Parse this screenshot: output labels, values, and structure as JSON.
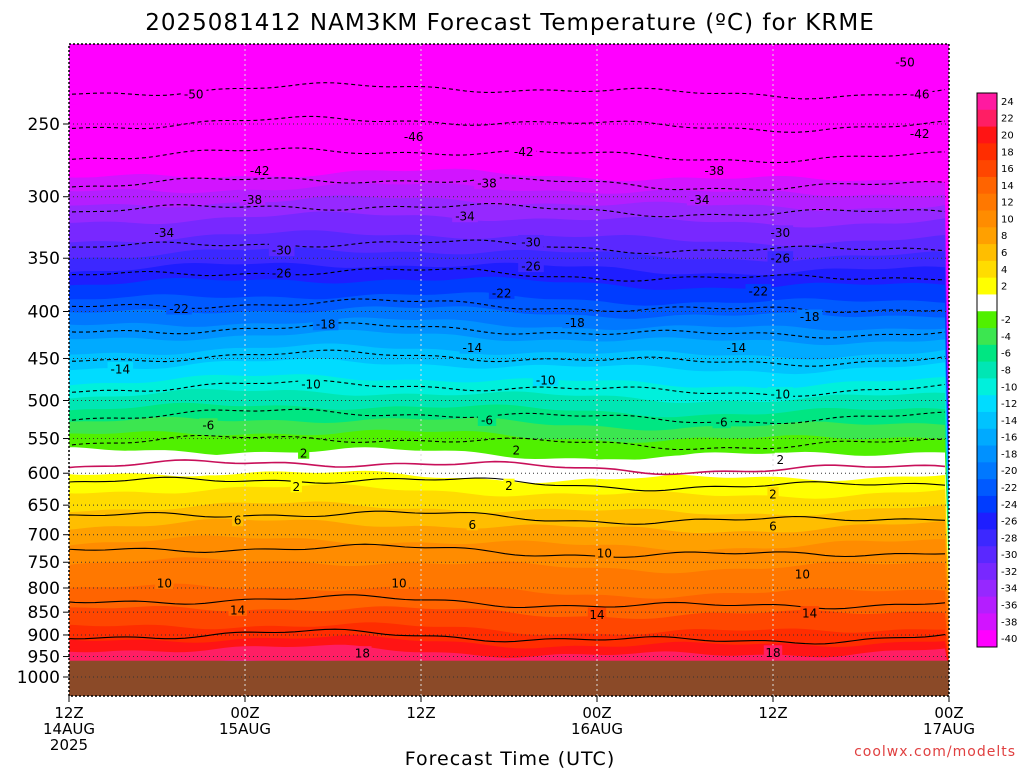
{
  "chart_data": {
    "type": "heatmap",
    "title": "2025081412 NAM3KM Forecast Temperature (ºC) for KRME",
    "xlabel": "Forecast Time (UTC)",
    "credit": "coolwx.com/modelts",
    "y_ticks": [
      "250",
      "300",
      "350",
      "400",
      "450",
      "500",
      "550",
      "600",
      "650",
      "700",
      "750",
      "800",
      "850",
      "900",
      "950",
      "1000"
    ],
    "x_ticks": [
      {
        "time": "12Z",
        "date": "14AUG",
        "year": "2025"
      },
      {
        "time": "00Z",
        "date": "15AUG",
        "year": ""
      },
      {
        "time": "12Z",
        "date": "",
        "year": ""
      },
      {
        "time": "00Z",
        "date": "16AUG",
        "year": ""
      },
      {
        "time": "12Z",
        "date": "",
        "year": ""
      },
      {
        "time": "00Z",
        "date": "17AUG",
        "year": ""
      }
    ],
    "x_hours": [
      0,
      12,
      24,
      36,
      48,
      60
    ],
    "xlim_hours": [
      0,
      60
    ],
    "ylim_hpa": [
      200,
      1050
    ],
    "surface_pressure_hpa": 960,
    "grid": true,
    "legend": "right colorbar",
    "colorbar": [
      {
        "label": "24",
        "color": "#ff1aa0"
      },
      {
        "label": "22",
        "color": "#ff1e64"
      },
      {
        "label": "20",
        "color": "#ff1414"
      },
      {
        "label": "18",
        "color": "#ff2d00"
      },
      {
        "label": "16",
        "color": "#ff4600"
      },
      {
        "label": "14",
        "color": "#ff6400"
      },
      {
        "label": "12",
        "color": "#ff7800"
      },
      {
        "label": "10",
        "color": "#ff8c00"
      },
      {
        "label": "8",
        "color": "#ffa000"
      },
      {
        "label": "6",
        "color": "#ffbe00"
      },
      {
        "label": "4",
        "color": "#ffdc00"
      },
      {
        "label": "2",
        "color": "#ffff00"
      },
      {
        "label": "",
        "color": "#ffffff"
      },
      {
        "label": "-2",
        "color": "#50f000"
      },
      {
        "label": "-4",
        "color": "#3ce650"
      },
      {
        "label": "-6",
        "color": "#00e682"
      },
      {
        "label": "-8",
        "color": "#00e6b4"
      },
      {
        "label": "-10",
        "color": "#00f0dc"
      },
      {
        "label": "-12",
        "color": "#00dcff"
      },
      {
        "label": "-14",
        "color": "#00c3ff"
      },
      {
        "label": "-16",
        "color": "#00aaff"
      },
      {
        "label": "-18",
        "color": "#0091ff"
      },
      {
        "label": "-20",
        "color": "#0078ff"
      },
      {
        "label": "-22",
        "color": "#005aff"
      },
      {
        "label": "-24",
        "color": "#003cff"
      },
      {
        "label": "-26",
        "color": "#1e1eff"
      },
      {
        "label": "-28",
        "color": "#3c28ff"
      },
      {
        "label": "-30",
        "color": "#5a28ff"
      },
      {
        "label": "-32",
        "color": "#7828ff"
      },
      {
        "label": "-34",
        "color": "#9628ff"
      },
      {
        "label": "-36",
        "color": "#b41eff"
      },
      {
        "label": "-38",
        "color": "#d214ff"
      },
      {
        "label": "-40",
        "color": "#ff00ff"
      }
    ],
    "pressure_temp_profile": [
      {
        "p": 200,
        "t": -56
      },
      {
        "p": 240,
        "t": -48
      },
      {
        "p": 270,
        "t": -42
      },
      {
        "p": 290,
        "t": -38
      },
      {
        "p": 310,
        "t": -34
      },
      {
        "p": 340,
        "t": -30
      },
      {
        "p": 365,
        "t": -26
      },
      {
        "p": 395,
        "t": -22
      },
      {
        "p": 420,
        "t": -18
      },
      {
        "p": 450,
        "t": -14
      },
      {
        "p": 485,
        "t": -10
      },
      {
        "p": 520,
        "t": -6
      },
      {
        "p": 555,
        "t": -2
      },
      {
        "p": 590,
        "t": 0
      },
      {
        "p": 615,
        "t": 2
      },
      {
        "p": 670,
        "t": 6
      },
      {
        "p": 730,
        "t": 10
      },
      {
        "p": 830,
        "t": 14
      },
      {
        "p": 905,
        "t": 18
      },
      {
        "p": 950,
        "t": 22
      },
      {
        "p": 1000,
        "t": 24
      }
    ],
    "contours": [
      {
        "t": -50,
        "dashed": true
      },
      {
        "t": -46,
        "dashed": true
      },
      {
        "t": -42,
        "dashed": true
      },
      {
        "t": -38,
        "dashed": true
      },
      {
        "t": -34,
        "dashed": true
      },
      {
        "t": -30,
        "dashed": true
      },
      {
        "t": -26,
        "dashed": true
      },
      {
        "t": -22,
        "dashed": true
      },
      {
        "t": -18,
        "dashed": true
      },
      {
        "t": -14,
        "dashed": true
      },
      {
        "t": -10,
        "dashed": true
      },
      {
        "t": -6,
        "dashed": true
      },
      {
        "t": -2,
        "dashed": true
      },
      {
        "t": 0,
        "dashed": false,
        "freezing": true
      },
      {
        "t": 2,
        "dashed": false
      },
      {
        "t": 6,
        "dashed": false
      },
      {
        "t": 10,
        "dashed": false
      },
      {
        "t": 14,
        "dashed": false
      },
      {
        "t": 18,
        "dashed": false
      }
    ],
    "contour_labels": [
      {
        "text": "-50",
        "hour": 8.5,
        "p": 232
      },
      {
        "text": "-50",
        "hour": 57,
        "p": 214
      },
      {
        "text": "-46",
        "hour": 23.5,
        "p": 258
      },
      {
        "text": "-46",
        "hour": 58,
        "p": 232
      },
      {
        "text": "-42",
        "hour": 13,
        "p": 281
      },
      {
        "text": "-42",
        "hour": 31,
        "p": 268
      },
      {
        "text": "-42",
        "hour": 58,
        "p": 256
      },
      {
        "text": "-38",
        "hour": 12.5,
        "p": 302
      },
      {
        "text": "-38",
        "hour": 28.5,
        "p": 290
      },
      {
        "text": "-38",
        "hour": 44,
        "p": 281
      },
      {
        "text": "-34",
        "hour": 6.5,
        "p": 328
      },
      {
        "text": "-34",
        "hour": 27,
        "p": 315
      },
      {
        "text": "-34",
        "hour": 43,
        "p": 302
      },
      {
        "text": "-30",
        "hour": 14.5,
        "p": 343
      },
      {
        "text": "-30",
        "hour": 31.5,
        "p": 336
      },
      {
        "text": "-30",
        "hour": 48.5,
        "p": 328
      },
      {
        "text": "-26",
        "hour": 14.5,
        "p": 363
      },
      {
        "text": "-26",
        "hour": 31.5,
        "p": 357
      },
      {
        "text": "-26",
        "hour": 48.5,
        "p": 350
      },
      {
        "text": "-22",
        "hour": 7.5,
        "p": 397
      },
      {
        "text": "-22",
        "hour": 29.5,
        "p": 382
      },
      {
        "text": "-22",
        "hour": 47,
        "p": 380
      },
      {
        "text": "-18",
        "hour": 17.5,
        "p": 413
      },
      {
        "text": "-18",
        "hour": 34.5,
        "p": 411
      },
      {
        "text": "-18",
        "hour": 50.5,
        "p": 405
      },
      {
        "text": "-14",
        "hour": 3.5,
        "p": 462
      },
      {
        "text": "-14",
        "hour": 27.5,
        "p": 438
      },
      {
        "text": "-14",
        "hour": 45.5,
        "p": 438
      },
      {
        "text": "-10",
        "hour": 16.5,
        "p": 480
      },
      {
        "text": "-10",
        "hour": 32.5,
        "p": 475
      },
      {
        "text": "-10",
        "hour": 48.5,
        "p": 492
      },
      {
        "text": "-6",
        "hour": 9.5,
        "p": 532
      },
      {
        "text": "-6",
        "hour": 28.5,
        "p": 525
      },
      {
        "text": "-6",
        "hour": 44.5,
        "p": 528
      },
      {
        "text": "2",
        "hour": 16,
        "p": 570
      },
      {
        "text": "2",
        "hour": 30.5,
        "p": 566
      },
      {
        "text": "2",
        "hour": 48.5,
        "p": 580
      },
      {
        "text": "2",
        "hour": 15.5,
        "p": 620
      },
      {
        "text": "2",
        "hour": 30,
        "p": 619
      },
      {
        "text": "2",
        "hour": 48,
        "p": 632
      },
      {
        "text": "6",
        "hour": 11.5,
        "p": 675
      },
      {
        "text": "6",
        "hour": 27.5,
        "p": 682
      },
      {
        "text": "6",
        "hour": 48,
        "p": 685
      },
      {
        "text": "10",
        "hour": 6.5,
        "p": 790
      },
      {
        "text": "10",
        "hour": 22.5,
        "p": 790
      },
      {
        "text": "10",
        "hour": 36.5,
        "p": 733
      },
      {
        "text": "10",
        "hour": 50,
        "p": 772
      },
      {
        "text": "14",
        "hour": 11.5,
        "p": 845
      },
      {
        "text": "14",
        "hour": 36,
        "p": 855
      },
      {
        "text": "14",
        "hour": 50.5,
        "p": 852
      },
      {
        "text": "18",
        "hour": 20,
        "p": 942
      },
      {
        "text": "18",
        "hour": 48,
        "p": 940
      }
    ]
  }
}
